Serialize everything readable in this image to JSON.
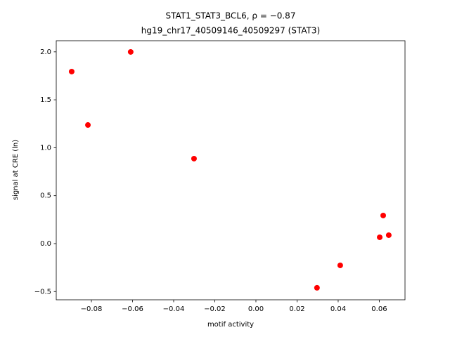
{
  "chart_data": {
    "type": "scatter",
    "title": "STAT1_STAT3_BCL6, ρ = −0.87",
    "subtitle": "hg19_chr17_40509146_40509297 (STAT3)",
    "x_label": "motif activity",
    "y_label": "signal at CRE (ln)",
    "color": "#ff0000",
    "grid": false,
    "x": [
      -0.0896,
      -0.0817,
      -0.0609,
      -0.0301,
      0.0297,
      0.041,
      0.0602,
      0.0619,
      0.0646
    ],
    "values": [
      1.794,
      1.237,
      1.999,
      0.886,
      -0.461,
      -0.227,
      0.066,
      0.293,
      0.088
    ],
    "xlim": [
      -0.0971,
      0.0725
    ],
    "ylim": [
      -0.586,
      2.116
    ],
    "xticks": [
      {
        "value": -0.08,
        "label": "−0.08"
      },
      {
        "value": -0.06,
        "label": "−0.06"
      },
      {
        "value": -0.04,
        "label": "−0.04"
      },
      {
        "value": -0.02,
        "label": "−0.02"
      },
      {
        "value": 0,
        "label": "0.00"
      },
      {
        "value": 0.02,
        "label": "0.02"
      },
      {
        "value": 0.04,
        "label": "0.04"
      },
      {
        "value": 0.06,
        "label": "0.06"
      }
    ],
    "yticks": [
      {
        "value": -0.5,
        "label": "−0.5"
      },
      {
        "value": 0,
        "label": "0.0"
      },
      {
        "value": 0.5,
        "label": "0.5"
      },
      {
        "value": 1,
        "label": "1.0"
      },
      {
        "value": 1.5,
        "label": "1.5"
      },
      {
        "value": 2,
        "label": "2.0"
      }
    ]
  }
}
